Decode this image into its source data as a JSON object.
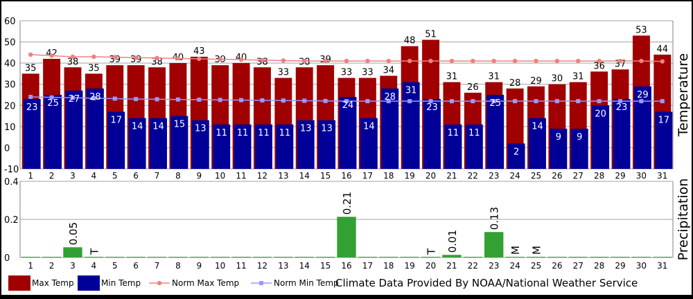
{
  "chart_data": [
    {
      "type": "bar",
      "ylabel": "Temperature",
      "ylim": [
        -10,
        60
      ],
      "yticks": [
        -10,
        0,
        10,
        20,
        30,
        40,
        50,
        60
      ],
      "grid": true,
      "categories": [
        "1",
        "2",
        "3",
        "4",
        "5",
        "6",
        "7",
        "8",
        "9",
        "10",
        "11",
        "12",
        "13",
        "14",
        "15",
        "16",
        "17",
        "18",
        "19",
        "20",
        "21",
        "22",
        "23",
        "24",
        "25",
        "26",
        "27",
        "28",
        "29",
        "30",
        "31"
      ],
      "series": [
        {
          "name": "Max Temp",
          "type": "bar",
          "color": "#a00000",
          "labels": "above",
          "values": [
            35,
            42,
            38,
            35,
            39,
            39,
            38,
            40,
            43,
            39,
            40,
            38,
            33,
            38,
            39,
            33,
            33,
            34,
            48,
            51,
            31,
            26,
            31,
            28,
            29,
            30,
            31,
            36,
            37,
            53,
            44
          ]
        },
        {
          "name": "Min Temp",
          "type": "bar",
          "color": "#000099",
          "labels": "inside",
          "values": [
            23,
            25,
            27,
            28,
            17,
            14,
            14,
            15,
            13,
            11,
            11,
            11,
            11,
            13,
            13,
            24,
            14,
            28,
            31,
            23,
            11,
            11,
            25,
            2,
            14,
            9,
            9,
            20,
            23,
            29,
            17
          ]
        },
        {
          "name": "Norm Max Temp",
          "type": "line",
          "color": "#f08080",
          "values": [
            44,
            43.5,
            43,
            43,
            42.8,
            42.6,
            42.4,
            42.2,
            42,
            41.8,
            41.6,
            41.4,
            41.2,
            41,
            41,
            41,
            41,
            41,
            41,
            41,
            41,
            41,
            41,
            41,
            41,
            41,
            41,
            41,
            41,
            41,
            40.8
          ]
        },
        {
          "name": "Norm Min Temp",
          "type": "line",
          "color": "#9999ff",
          "values": [
            24,
            23.8,
            23.6,
            23.4,
            23.2,
            23,
            22.9,
            22.8,
            22.7,
            22.6,
            22.5,
            22.4,
            22.3,
            22.2,
            22.1,
            22,
            22,
            22,
            22,
            22,
            22,
            22,
            22,
            22,
            22,
            22,
            22,
            22,
            22,
            22,
            22
          ]
        }
      ]
    },
    {
      "type": "bar",
      "ylabel": "Precipitation",
      "ylim": [
        0,
        0.4
      ],
      "yticks": [
        "0",
        "0.2",
        "0.4"
      ],
      "grid": true,
      "categories": [
        "1",
        "2",
        "3",
        "4",
        "5",
        "6",
        "7",
        "8",
        "9",
        "10",
        "11",
        "12",
        "13",
        "14",
        "15",
        "16",
        "17",
        "18",
        "19",
        "20",
        "21",
        "22",
        "23",
        "24",
        "25",
        "26",
        "27",
        "28",
        "29",
        "30",
        "31"
      ],
      "series": [
        {
          "name": "Precipitation",
          "color": "#33a033",
          "values": [
            0,
            0,
            0.05,
            0,
            0,
            0,
            0,
            0,
            0,
            0,
            0,
            0,
            0,
            0,
            0,
            0.21,
            0,
            0,
            0,
            0,
            0.01,
            0,
            0.13,
            0,
            0,
            0,
            0,
            0,
            0,
            0,
            0
          ]
        }
      ],
      "annotations": [
        {
          "day": 3,
          "text": "0.05"
        },
        {
          "day": 4,
          "text": "T"
        },
        {
          "day": 16,
          "text": "0.21"
        },
        {
          "day": 20,
          "text": "T"
        },
        {
          "day": 21,
          "text": "0.01"
        },
        {
          "day": 23,
          "text": "0.13"
        },
        {
          "day": 24,
          "text": "M"
        },
        {
          "day": 25,
          "text": "M"
        }
      ]
    }
  ],
  "legend": {
    "placement": "bottom-left",
    "items": [
      {
        "label": "Max Temp",
        "kind": "box",
        "color": "#a00000"
      },
      {
        "label": "Min Temp",
        "kind": "box",
        "color": "#000099"
      },
      {
        "label": "Norm Max Temp",
        "kind": "line-circle",
        "color": "#f08080"
      },
      {
        "label": "Norm Min Temp",
        "kind": "line-square",
        "color": "#9999ff"
      }
    ]
  },
  "credit": "Climate Data Provided By NOAA/National Weather Service"
}
